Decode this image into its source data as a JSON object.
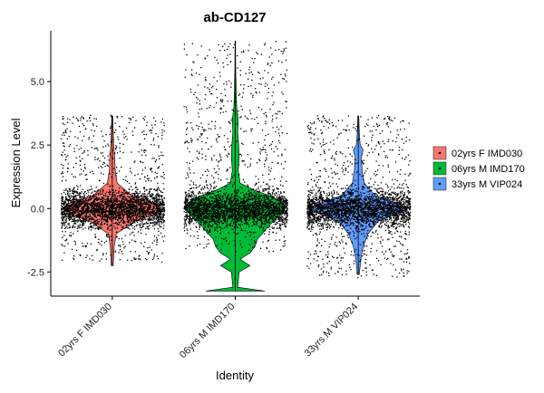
{
  "chart_data": {
    "type": "violin",
    "title": "ab-CD127",
    "xlabel": "Identity",
    "ylabel": "Expression Level",
    "ylim": [
      -3.45,
      7.0
    ],
    "yticks": [
      -2.5,
      0.0,
      2.5,
      5.0
    ],
    "ytick_labels": [
      "-2.5",
      "0.0",
      "2.5",
      "5.0"
    ],
    "categories": [
      "02yrs F IMD030",
      "06yrs M IMD170",
      "33yrs M VIP024"
    ],
    "legend_position": "right",
    "grid": false,
    "series": [
      {
        "name": "02yrs F IMD030",
        "color": "#F8766D",
        "min": -2.25,
        "max": 3.65,
        "density_width": [
          [
            -2.25,
            0.02
          ],
          [
            -1.5,
            0.04
          ],
          [
            -1.0,
            0.08
          ],
          [
            -0.5,
            0.45
          ],
          [
            -0.2,
            0.9
          ],
          [
            0.0,
            1.0
          ],
          [
            0.2,
            0.9
          ],
          [
            0.5,
            0.4
          ],
          [
            1.0,
            0.1
          ],
          [
            1.5,
            0.06
          ],
          [
            2.0,
            0.05
          ],
          [
            2.5,
            0.03
          ],
          [
            3.0,
            0.02
          ],
          [
            3.65,
            0.01
          ]
        ],
        "points_core": [
          -0.8,
          0.8
        ],
        "points_sparse": [
          -2.1,
          3.7
        ]
      },
      {
        "name": "06yrs M IMD170",
        "color": "#00BA38",
        "min": -3.25,
        "max": 6.6,
        "density_width": [
          [
            -3.25,
            0.6
          ],
          [
            -3.1,
            0.05
          ],
          [
            -2.5,
            0.08
          ],
          [
            -2.25,
            0.3
          ],
          [
            -2.0,
            0.1
          ],
          [
            -1.75,
            0.3
          ],
          [
            -1.5,
            0.4
          ],
          [
            -1.2,
            0.45
          ],
          [
            -1.0,
            0.55
          ],
          [
            -0.75,
            0.65
          ],
          [
            -0.5,
            0.78
          ],
          [
            -0.25,
            0.92
          ],
          [
            0.0,
            1.0
          ],
          [
            0.25,
            0.95
          ],
          [
            0.5,
            0.7
          ],
          [
            0.75,
            0.35
          ],
          [
            1.0,
            0.1
          ],
          [
            1.5,
            0.06
          ],
          [
            2.0,
            0.08
          ],
          [
            2.5,
            0.07
          ],
          [
            3.0,
            0.05
          ],
          [
            3.5,
            0.06
          ],
          [
            4.0,
            0.03
          ],
          [
            4.5,
            0.02
          ],
          [
            5.5,
            0.01
          ],
          [
            6.6,
            0.005
          ]
        ],
        "points_core": [
          -1.0,
          1.2
        ],
        "points_sparse": [
          -1.7,
          6.6
        ]
      },
      {
        "name": "33yrs M VIP024",
        "color": "#619CFF",
        "min": -2.6,
        "max": 3.65,
        "density_width": [
          [
            -2.6,
            0.02
          ],
          [
            -2.0,
            0.05
          ],
          [
            -1.5,
            0.1
          ],
          [
            -1.0,
            0.2
          ],
          [
            -0.5,
            0.4
          ],
          [
            -0.2,
            0.8
          ],
          [
            0.0,
            1.0
          ],
          [
            0.2,
            0.8
          ],
          [
            0.5,
            0.35
          ],
          [
            1.0,
            0.12
          ],
          [
            1.5,
            0.08
          ],
          [
            2.0,
            0.06
          ],
          [
            2.3,
            0.1
          ],
          [
            2.5,
            0.04
          ],
          [
            3.0,
            0.02
          ],
          [
            3.65,
            0.01
          ]
        ],
        "points_core": [
          -2.0,
          2.2
        ],
        "points_sparse": [
          -2.7,
          3.7
        ]
      }
    ]
  }
}
